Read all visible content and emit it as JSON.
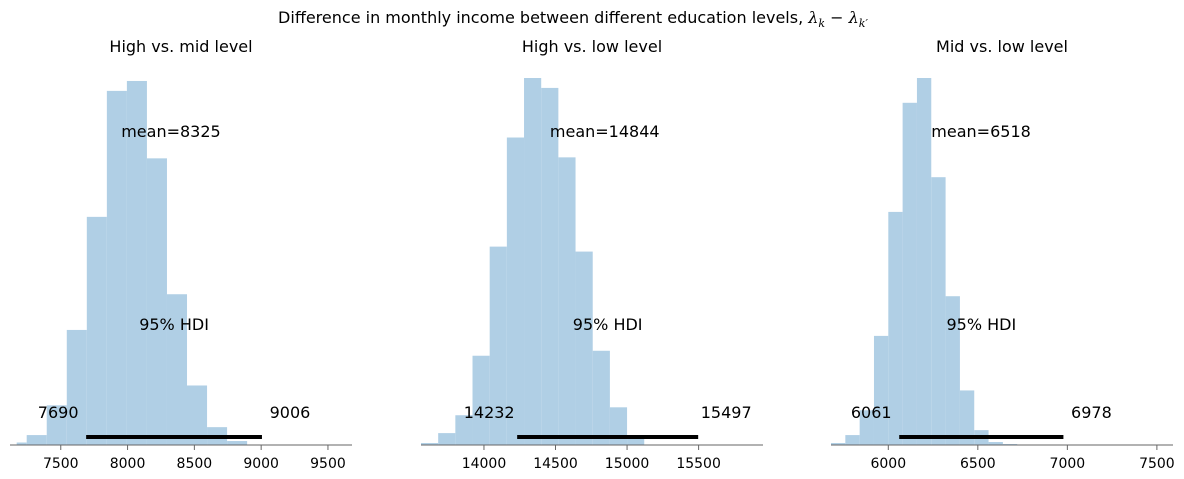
{
  "figure": {
    "suptitle": "Difference in monthly income between different education levels, ",
    "suptitle_math": "λk − λk′"
  },
  "chart_data": [
    {
      "type": "histogram",
      "title": "High vs. mid level",
      "bar_color": "#b0cfe5",
      "bins": [
        {
          "x0": 7170,
          "x1": 7245,
          "h": 2.5
        },
        {
          "x0": 7245,
          "x1": 7395,
          "h": 10
        },
        {
          "x0": 7395,
          "x1": 7545,
          "h": 40
        },
        {
          "x0": 7545,
          "x1": 7695,
          "h": 116
        },
        {
          "x0": 7695,
          "x1": 7845,
          "h": 230
        },
        {
          "x0": 7845,
          "x1": 7995,
          "h": 357
        },
        {
          "x0": 7995,
          "x1": 8145,
          "h": 367
        },
        {
          "x0": 8145,
          "x1": 8295,
          "h": 289
        },
        {
          "x0": 8295,
          "x1": 8445,
          "h": 152
        },
        {
          "x0": 8445,
          "x1": 8595,
          "h": 60
        },
        {
          "x0": 8595,
          "x1": 8745,
          "h": 18
        },
        {
          "x0": 8745,
          "x1": 8895,
          "h": 4
        },
        {
          "x0": 8895,
          "x1": 9040,
          "h": 0
        }
      ],
      "xlim": [
        7120,
        9680
      ],
      "ylim": [
        0,
        370
      ],
      "xticks": [
        7500,
        8000,
        8500,
        9000,
        9500
      ],
      "mean": 8325,
      "mean_label": "mean=8325",
      "hdi_label": "95% HDI",
      "hdi_low": 7690,
      "hdi_high": 9006,
      "hdi_low_label": "7690",
      "hdi_high_label": "9006"
    },
    {
      "type": "histogram",
      "title": "High vs. low level",
      "bar_color": "#b0cfe5",
      "bins": [
        {
          "x0": 13560,
          "x1": 13680,
          "h": 2
        },
        {
          "x0": 13680,
          "x1": 13800,
          "h": 12
        },
        {
          "x0": 13800,
          "x1": 13920,
          "h": 30
        },
        {
          "x0": 13920,
          "x1": 14040,
          "h": 90
        },
        {
          "x0": 14040,
          "x1": 14160,
          "h": 200
        },
        {
          "x0": 14160,
          "x1": 14280,
          "h": 310
        },
        {
          "x0": 14280,
          "x1": 14400,
          "h": 370
        },
        {
          "x0": 14400,
          "x1": 14520,
          "h": 360
        },
        {
          "x0": 14520,
          "x1": 14640,
          "h": 290
        },
        {
          "x0": 14640,
          "x1": 14760,
          "h": 195
        },
        {
          "x0": 14760,
          "x1": 14880,
          "h": 95
        },
        {
          "x0": 14880,
          "x1": 15000,
          "h": 38
        },
        {
          "x0": 15000,
          "x1": 15120,
          "h": 8
        }
      ],
      "xlim": [
        13560,
        15950
      ],
      "ylim": [
        0,
        370
      ],
      "xticks": [
        14000,
        14500,
        15000,
        15500
      ],
      "mean": 14844,
      "mean_label": "mean=14844",
      "hdi_label": "95% HDI",
      "hdi_low": 14232,
      "hdi_high": 15497,
      "hdi_low_label": "14232",
      "hdi_high_label": "15497"
    },
    {
      "type": "histogram",
      "title": "Mid vs. low level",
      "bar_color": "#b0cfe5",
      "bins": [
        {
          "x0": 5680,
          "x1": 5760,
          "h": 2
        },
        {
          "x0": 5760,
          "x1": 5840,
          "h": 10
        },
        {
          "x0": 5840,
          "x1": 5920,
          "h": 35
        },
        {
          "x0": 5920,
          "x1": 6000,
          "h": 110
        },
        {
          "x0": 6000,
          "x1": 6080,
          "h": 235
        },
        {
          "x0": 6080,
          "x1": 6160,
          "h": 345
        },
        {
          "x0": 6160,
          "x1": 6240,
          "h": 370
        },
        {
          "x0": 6240,
          "x1": 6320,
          "h": 270
        },
        {
          "x0": 6320,
          "x1": 6400,
          "h": 150
        },
        {
          "x0": 6400,
          "x1": 6480,
          "h": 55
        },
        {
          "x0": 6480,
          "x1": 6560,
          "h": 15
        },
        {
          "x0": 6560,
          "x1": 6640,
          "h": 3
        },
        {
          "x0": 6640,
          "x1": 6720,
          "h": 1
        }
      ],
      "xlim": [
        5680,
        7590
      ],
      "ylim": [
        0,
        370
      ],
      "xticks": [
        6000,
        6500,
        7000,
        7500
      ],
      "mean": 6518,
      "mean_label": "mean=6518",
      "hdi_label": "95% HDI",
      "hdi_low": 6061,
      "hdi_high": 6978,
      "hdi_low_label": "6061",
      "hdi_high_label": "6978"
    }
  ]
}
